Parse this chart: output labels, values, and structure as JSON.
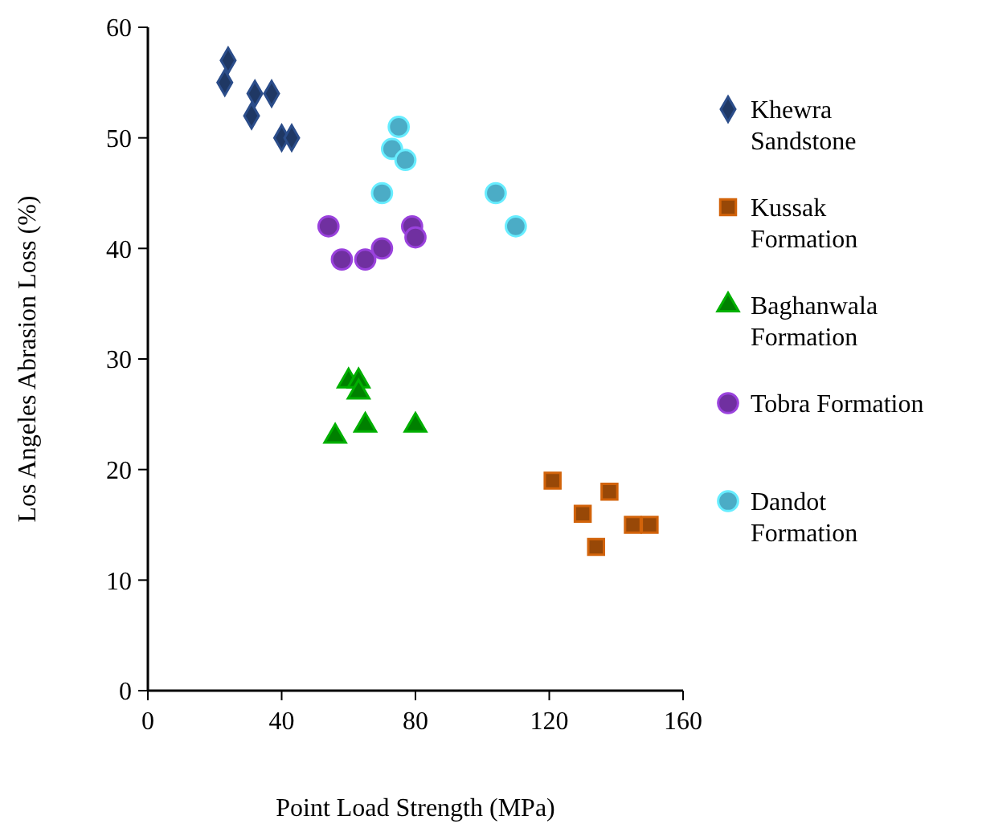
{
  "chart_data": {
    "type": "scatter",
    "xlabel": "Point Load Strength (MPa)",
    "ylabel": "Los Angeles Abrasion Loss (%)",
    "xlim": [
      0,
      160
    ],
    "xticks": [
      0,
      40,
      80,
      120,
      160
    ],
    "ylim": [
      0,
      60
    ],
    "yticks": [
      0,
      10,
      20,
      30,
      40,
      50,
      60
    ],
    "grid": false,
    "legend": "right",
    "series": [
      {
        "name": "Khewra Sandstone",
        "color": "#1f3864",
        "marker": "diamond",
        "x": [
          24,
          23,
          32,
          37,
          31,
          40,
          43
        ],
        "values": [
          57,
          55,
          54,
          54,
          52,
          50,
          50
        ]
      },
      {
        "name": "Kussak Formation",
        "color": "#984807",
        "marker": "square",
        "x": [
          121,
          138,
          130,
          145,
          150,
          134
        ],
        "values": [
          19,
          18,
          16,
          15,
          15,
          13
        ]
      },
      {
        "name": "Baghanwala Formation",
        "color": "#008000",
        "marker": "triangle",
        "x": [
          60,
          63,
          63,
          56,
          65,
          80
        ],
        "values": [
          28,
          28,
          27,
          23,
          24,
          24
        ]
      },
      {
        "name": "Tobra Formation",
        "color": "#7030a0",
        "marker": "circle",
        "x": [
          54,
          58,
          65,
          70,
          79,
          80
        ],
        "values": [
          42,
          39,
          39,
          40,
          42,
          41
        ]
      },
      {
        "name": "Dandot Formation",
        "color": "#4bacc6",
        "marker": "circle",
        "x": [
          75,
          73,
          77,
          70,
          104,
          110
        ],
        "values": [
          51,
          49,
          48,
          45,
          45,
          42
        ]
      }
    ]
  }
}
